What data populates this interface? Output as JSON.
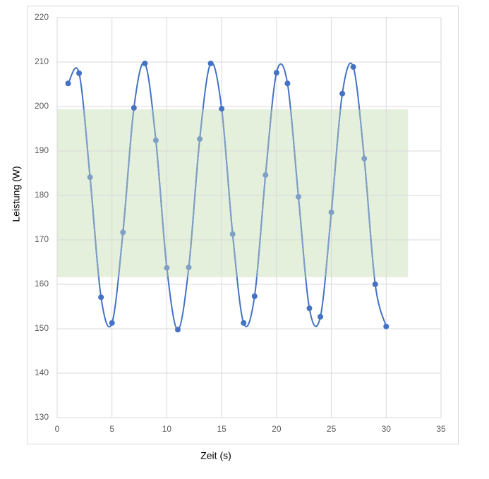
{
  "chart_data": {
    "type": "scatter",
    "x_label": "Zeit (s)",
    "y_label": "Leistung (W)",
    "series": [
      {
        "color": "#4472c4",
        "highlight_color": "#7f9fc4",
        "x": [
          1,
          2,
          3,
          4,
          5,
          6,
          7,
          8,
          9,
          10,
          11,
          12,
          13,
          14,
          15,
          16,
          17,
          18,
          19,
          20,
          21,
          22,
          23,
          24,
          25,
          26,
          27,
          28,
          29,
          30
        ],
        "values": [
          205.2,
          207.5,
          184.1,
          157.1,
          151.3,
          171.7,
          199.7,
          209.7,
          192.4,
          163.7,
          149.8,
          163.8,
          192.7,
          209.7,
          199.5,
          171.3,
          151.3,
          157.3,
          184.6,
          207.6,
          205.2,
          179.7,
          154.6,
          152.7,
          176.2,
          202.9,
          208.9,
          188.3,
          160.0,
          150.5
        ]
      }
    ],
    "band": {
      "xlim": [
        0,
        32
      ],
      "ylim": [
        161.6,
        199.4
      ],
      "color": "#e5f0dc"
    },
    "xlim": [
      0,
      35
    ],
    "xticks": [
      0,
      5,
      10,
      15,
      20,
      25,
      30,
      35
    ],
    "ylim": [
      130,
      220
    ],
    "yticks": [
      130,
      140,
      150,
      160,
      170,
      180,
      190,
      200,
      210,
      220
    ],
    "grid": true,
    "smooth": true
  }
}
